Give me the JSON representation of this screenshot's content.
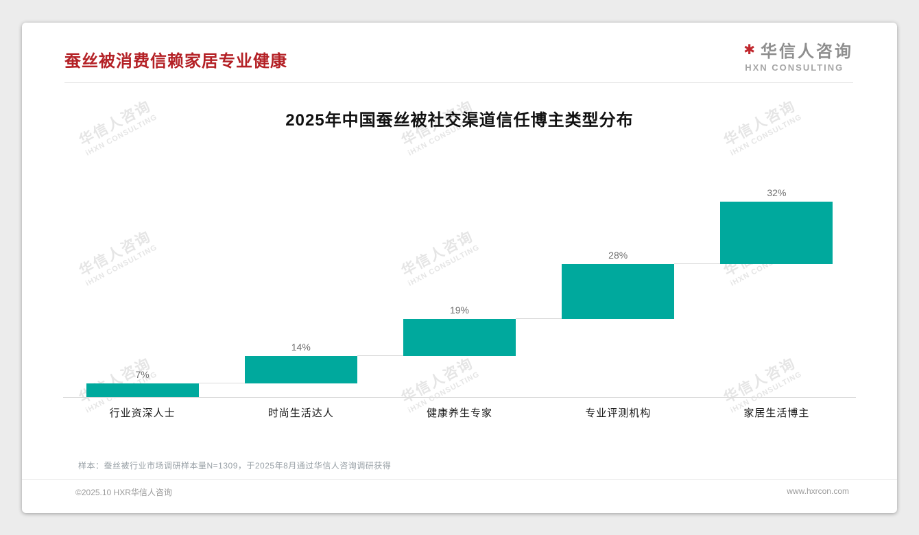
{
  "page": {
    "title": "蚕丝被消费信赖家居专业健康"
  },
  "logo": {
    "mark": "✱",
    "name_cn": "华信人咨询",
    "name_en": "HXN CONSULTING"
  },
  "watermark": {
    "line1": "华信人咨询",
    "line2": "iHXN CONSULTING"
  },
  "chart_data": {
    "type": "bar",
    "subtype": "waterfall-ascending-steps",
    "title": "2025年中国蚕丝被社交渠道信任博主类型分布",
    "categories": [
      "行业资深人士",
      "时尚生活达人",
      "健康养生专家",
      "专业评测机构",
      "家居生活博主"
    ],
    "values": [
      7,
      14,
      19,
      28,
      32
    ],
    "labels": [
      "7%",
      "14%",
      "19%",
      "28%",
      "32%"
    ],
    "unit": "%",
    "cumulative": true,
    "ylim": [
      0,
      100
    ],
    "grid": false,
    "bar_color": "#00A99D",
    "label_color": "#6e6e6e"
  },
  "footnote": "样本：蚕丝被行业市场调研样本量N=1309，于2025年8月通过华信人咨询调研获得",
  "footer": {
    "left": "©2025.10 HXR华信人咨询",
    "right": "www.hxrcon.com"
  },
  "colors": {
    "accent_red": "#B42126",
    "bar_teal": "#00A99D"
  }
}
